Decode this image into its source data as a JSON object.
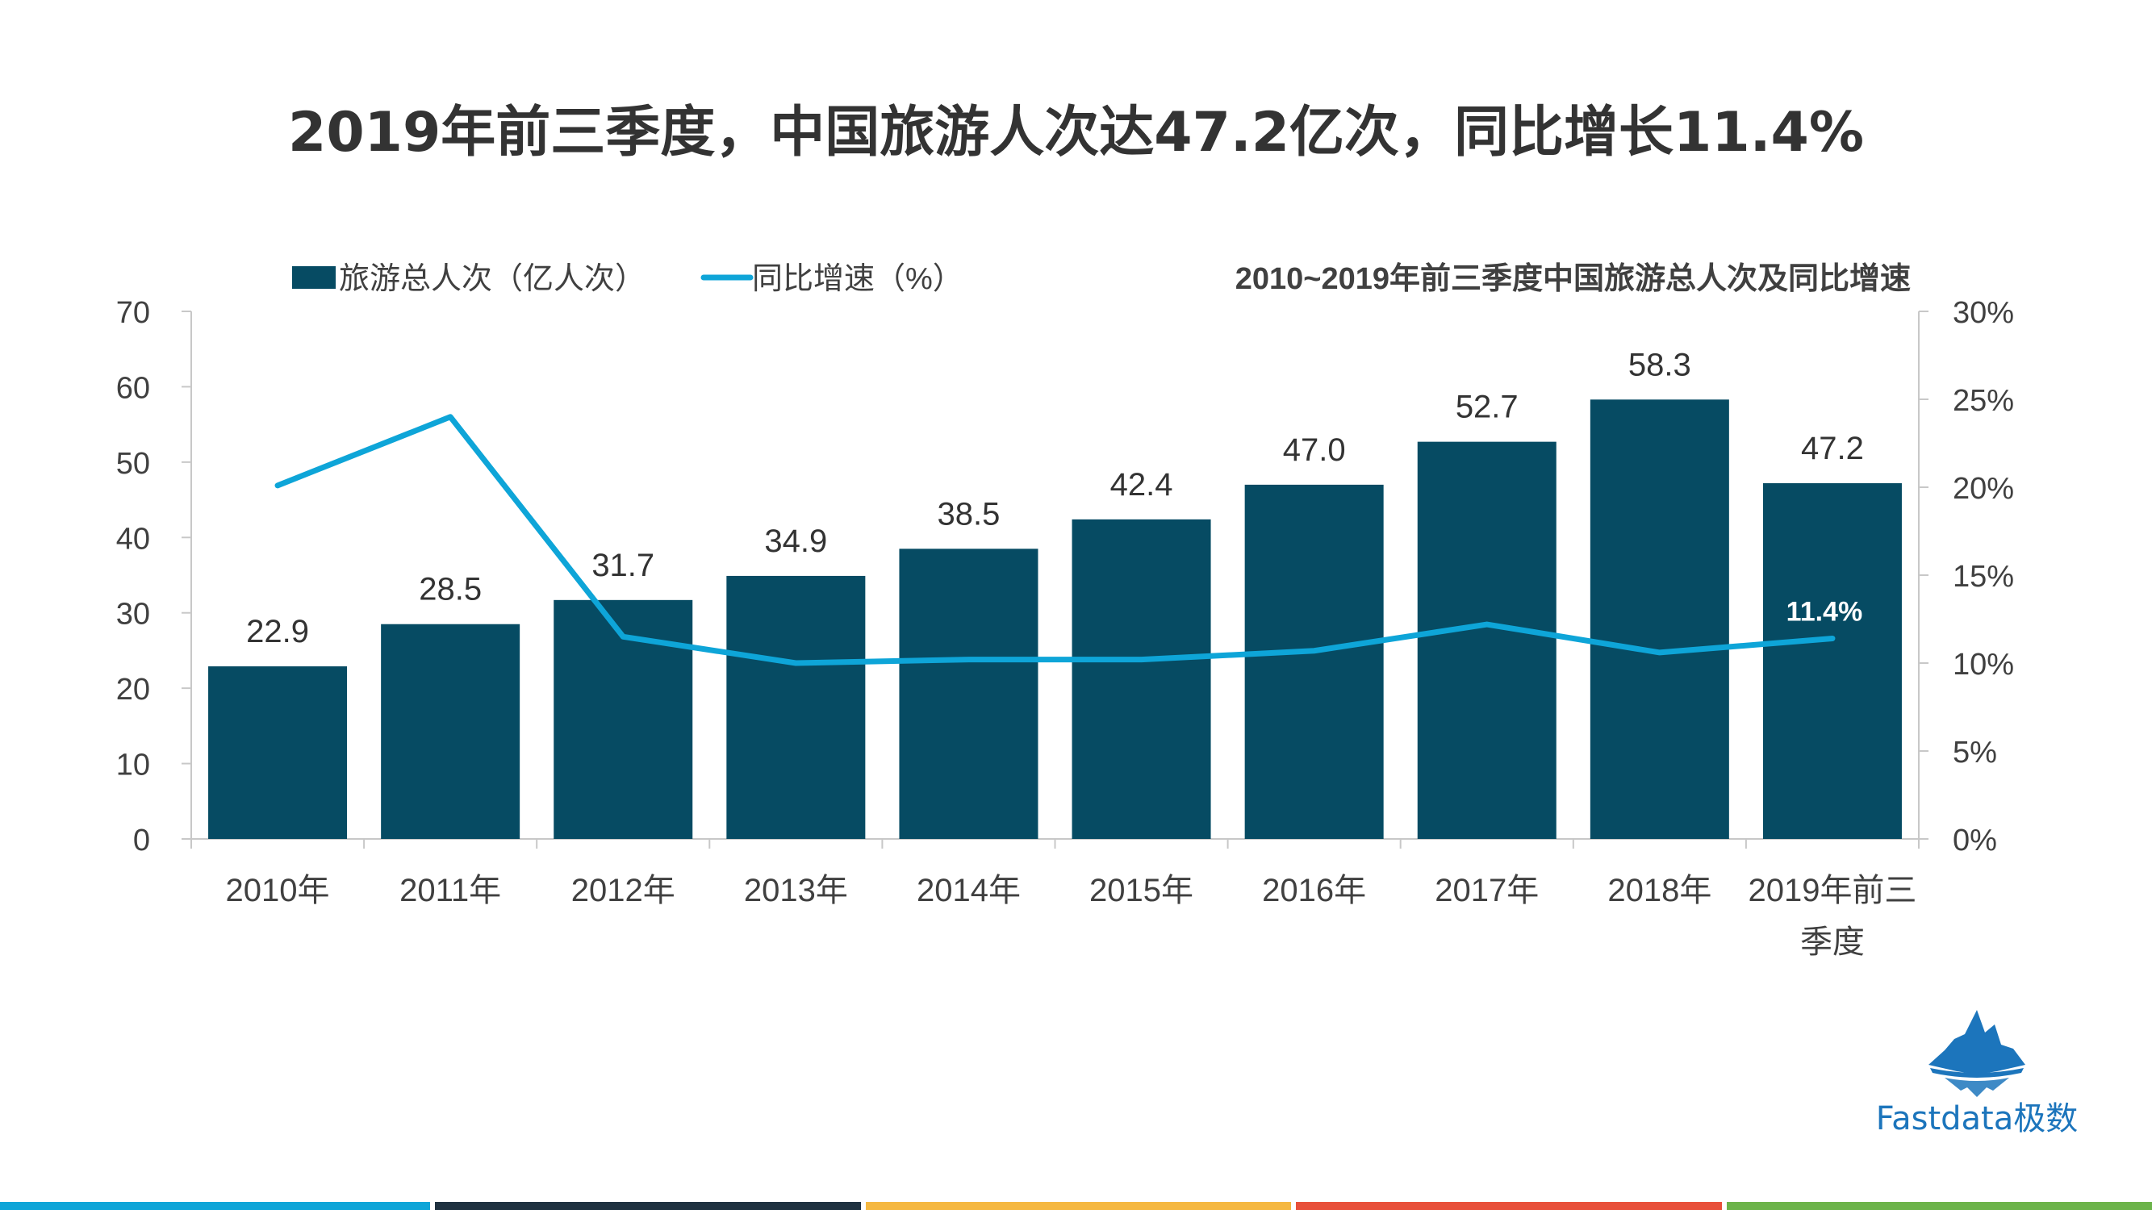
{
  "title": "2019年前三季度，中国旅游人次达47.2亿次，同比增长11.4%",
  "chart_data": {
    "type": "bar",
    "subtitle": "2010~2019年前三季度中国旅游总人次及同比增速",
    "categories": [
      "2010年",
      "2011年",
      "2012年",
      "2013年",
      "2014年",
      "2015年",
      "2016年",
      "2017年",
      "2018年",
      "2019年前三季度"
    ],
    "category_lines": [
      [
        "2010年"
      ],
      [
        "2011年"
      ],
      [
        "2012年"
      ],
      [
        "2013年"
      ],
      [
        "2014年"
      ],
      [
        "2015年"
      ],
      [
        "2016年"
      ],
      [
        "2017年"
      ],
      [
        "2018年"
      ],
      [
        "2019年前三",
        "季度"
      ]
    ],
    "series": [
      {
        "name": "旅游总人次（亿人次）",
        "type": "bar",
        "axis": "left",
        "values": [
          22.9,
          28.5,
          31.7,
          34.9,
          38.5,
          42.4,
          47.0,
          52.7,
          58.3,
          47.2
        ],
        "labels": [
          "22.9",
          "28.5",
          "31.7",
          "34.9",
          "38.5",
          "42.4",
          "47.0",
          "52.7",
          "58.3",
          "47.2"
        ],
        "color": "#064b63"
      },
      {
        "name": "同比增速（%）",
        "type": "line",
        "axis": "right",
        "values": [
          20.1,
          24.0,
          11.5,
          10.0,
          10.2,
          10.2,
          10.7,
          12.2,
          10.6,
          11.4
        ],
        "labels": [
          "",
          "",
          "",
          "",
          "",
          "",
          "",
          "",
          "",
          "11.4%"
        ],
        "color": "#0ea5d8"
      }
    ],
    "y_left": {
      "range": [
        0,
        70
      ],
      "ticks": [
        "0",
        "10",
        "20",
        "30",
        "40",
        "50",
        "60",
        "70"
      ]
    },
    "y_right": {
      "range": [
        0,
        30
      ],
      "ticks": [
        "0%",
        "5%",
        "10%",
        "15%",
        "20%",
        "25%",
        "30%"
      ]
    },
    "legend_position": "top-left",
    "grid": false
  },
  "logo": {
    "text": "Fastdata极数",
    "color": "#1c75bc"
  },
  "footer_colors": [
    "#0ea5d8",
    "#1f3140",
    "#f5b841",
    "#e8503a",
    "#6cb34a"
  ],
  "text_color": "#404040"
}
